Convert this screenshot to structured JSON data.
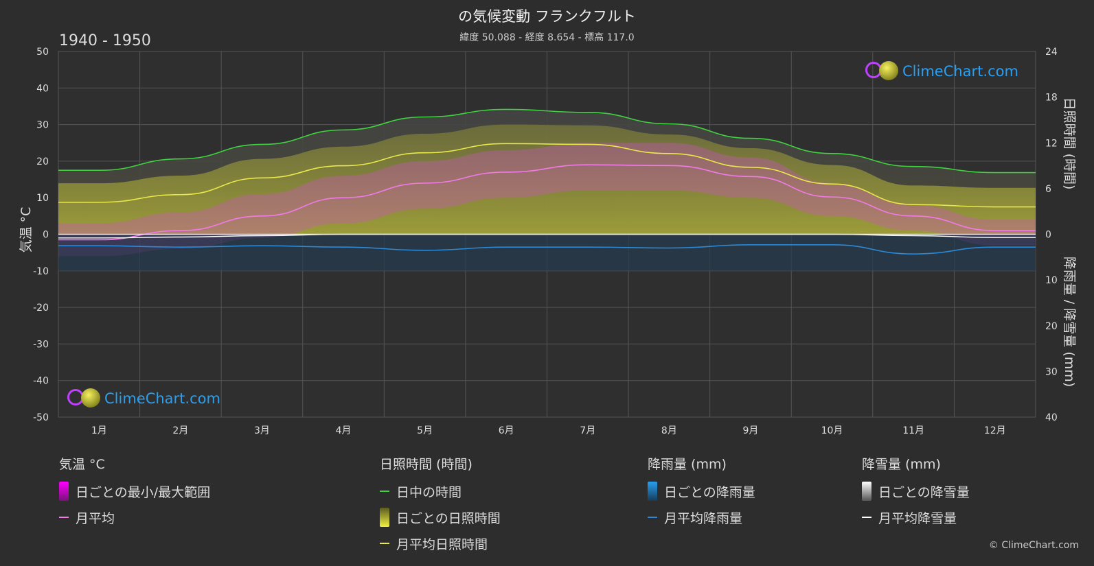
{
  "title": "の気候変動 フランクフルト",
  "subtitle": "緯度 50.088 - 経度 8.654 - 標高 117.0",
  "period": "1940 - 1950",
  "left_axis_label": "気温 °C",
  "right_axis_label_top": "日照時間 (時間)",
  "right_axis_label_bottom": "降雨量 / 降雪量 (mm)",
  "logo_text": "ClimeChart.com",
  "copyright": "© ClimeChart.com",
  "colors": {
    "background": "#2d2d2d",
    "daylight": "#3fd43f",
    "sunshine": "#e8e84a",
    "temp_mean": "#f07ae8",
    "rain": "#2a8ad8",
    "snow": "#ffffff"
  },
  "legend": {
    "temperature": {
      "head": "気温 °C",
      "range": "日ごとの最小/最大範囲",
      "mean": "月平均"
    },
    "sunshine": {
      "head": "日照時間 (時間)",
      "daylight": "日中の時間",
      "daily": "日ごとの日照時間",
      "mean": "月平均日照時間"
    },
    "rain": {
      "head": "降雨量 (mm)",
      "daily": "日ごとの降雨量",
      "mean": "月平均降雨量"
    },
    "snow": {
      "head": "降雪量 (mm)",
      "daily": "日ごとの降雪量",
      "mean": "月平均降雪量"
    }
  },
  "chart_data": {
    "type": "line",
    "categories": [
      "1月",
      "2月",
      "3月",
      "4月",
      "5月",
      "6月",
      "7月",
      "8月",
      "9月",
      "10月",
      "11月",
      "12月"
    ],
    "y_left": {
      "label": "気温 °C",
      "ylim": [
        -50,
        50
      ],
      "ticks": [
        50,
        40,
        30,
        20,
        10,
        0,
        -10,
        -20,
        -30,
        -40,
        -50
      ]
    },
    "y_right_top": {
      "label": "日照時間 (時間)",
      "ylim": [
        0,
        24
      ],
      "ticks": [
        24,
        18,
        12,
        6,
        0
      ]
    },
    "y_right_bottom": {
      "label": "降雨量 / 降雪量 (mm)",
      "ylim": [
        0,
        40
      ],
      "ticks": [
        0,
        10,
        20,
        30,
        40
      ]
    },
    "grid": true,
    "series": [
      {
        "name": "日中の時間",
        "axis": "sunshine",
        "values": [
          8.4,
          9.9,
          11.8,
          13.7,
          15.4,
          16.4,
          16.0,
          14.5,
          12.6,
          10.6,
          8.9,
          8.1
        ]
      },
      {
        "name": "月平均日照時間",
        "axis": "sunshine",
        "values": [
          4.2,
          5.2,
          7.4,
          9.0,
          10.7,
          11.9,
          11.8,
          10.6,
          8.8,
          6.6,
          3.9,
          3.6
        ]
      },
      {
        "name": "月平均",
        "axis": "temperature",
        "values": [
          -1.5,
          1.0,
          5.0,
          10.0,
          14.0,
          17.0,
          19.0,
          18.8,
          15.8,
          10.2,
          5.0,
          1.0
        ]
      },
      {
        "name": "月平均降雨量",
        "axis": "precipitation",
        "values": [
          2.5,
          2.8,
          2.5,
          2.8,
          3.5,
          2.8,
          2.8,
          3.0,
          2.3,
          2.3,
          4.3,
          2.8
        ]
      },
      {
        "name": "月平均降雪量",
        "axis": "precipitation",
        "values": [
          0.8,
          0.6,
          0.3,
          0.0,
          0.0,
          0.0,
          0.0,
          0.0,
          0.0,
          0.0,
          0.3,
          0.7
        ]
      },
      {
        "name": "日ごとの最小/最大範囲",
        "axis": "temperature",
        "min": [
          -6,
          -4,
          -1,
          3,
          7,
          10,
          12,
          12,
          10,
          5,
          1,
          -3
        ],
        "max": [
          3,
          6,
          11,
          16,
          20,
          23,
          25,
          25,
          21,
          14,
          8,
          4
        ]
      }
    ]
  }
}
